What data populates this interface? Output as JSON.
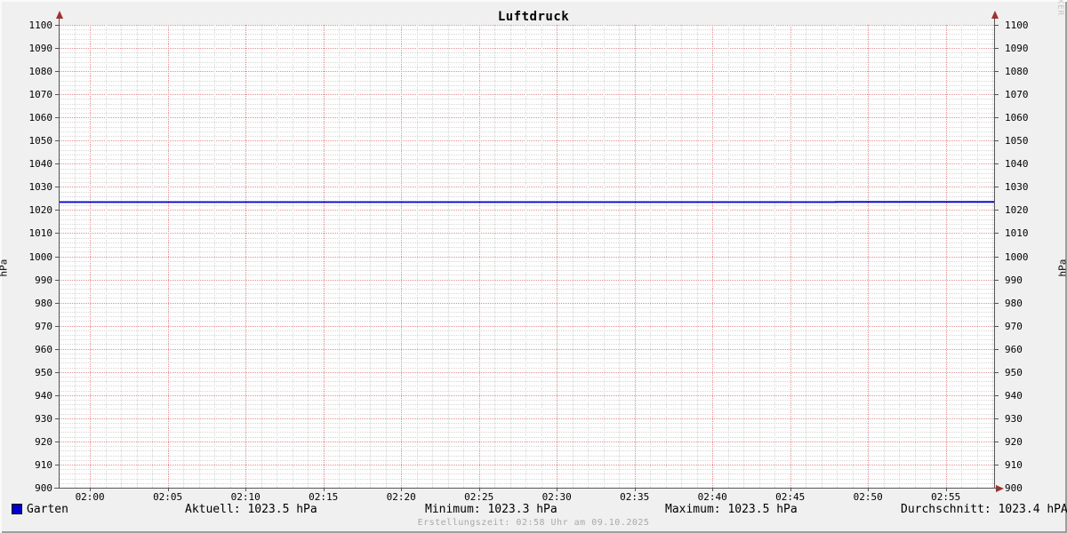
{
  "title": "Luftdruck",
  "watermark": "RRDTOOL / TOBI OETIKER",
  "footer": "Erstellungszeit: 02:58 Uhr am 09.10.2025",
  "legend": {
    "series_label": "Garten",
    "series_color": "#0000cc",
    "stats": {
      "aktuell": "Aktuell: 1023.5 hPa",
      "minimum": "Minimum: 1023.3 hPa",
      "maximum": "Maximum: 1023.5 hPa",
      "durchschnitt": "Durchschnitt: 1023.4 hPA"
    }
  },
  "chart_data": {
    "type": "line",
    "title": "Luftdruck",
    "ylabel": "hPa",
    "ylabel_right": "hPa",
    "ylim": [
      900,
      1100
    ],
    "y_major_step": 10,
    "y_minor_step": 2,
    "x_unit": "minutes_since_midnight",
    "xlim": [
      118.05,
      178.1
    ],
    "x_major_step_min": 5,
    "x_minor_step_min": 1,
    "x_ticks": [
      {
        "t": 120,
        "label": "02:00"
      },
      {
        "t": 125,
        "label": "02:05"
      },
      {
        "t": 130,
        "label": "02:10"
      },
      {
        "t": 135,
        "label": "02:15"
      },
      {
        "t": 140,
        "label": "02:20"
      },
      {
        "t": 145,
        "label": "02:25"
      },
      {
        "t": 150,
        "label": "02:30"
      },
      {
        "t": 155,
        "label": "02:35"
      },
      {
        "t": 160,
        "label": "02:40"
      },
      {
        "t": 165,
        "label": "02:45"
      },
      {
        "t": 170,
        "label": "02:50"
      },
      {
        "t": 175,
        "label": "02:55"
      }
    ],
    "grid_on": true,
    "colors": {
      "major_grid": "#e38f8f",
      "minor_grid": "#d6d6d6",
      "axis": "#555555",
      "arrow": "#a03030",
      "background": "#f0f0f0",
      "canvas": "#ffffff",
      "series": "#0000cc"
    },
    "series": [
      {
        "name": "Garten",
        "color": "#0000cc",
        "points": [
          [
            118.05,
            1023.4
          ],
          [
            167.9,
            1023.4
          ],
          [
            167.9,
            1023.5
          ],
          [
            178.1,
            1023.5
          ]
        ]
      }
    ],
    "stats": {
      "aktuell_hpa": 1023.5,
      "minimum_hpa": 1023.3,
      "maximum_hpa": 1023.5,
      "durchschnitt_hpa": 1023.4
    }
  }
}
